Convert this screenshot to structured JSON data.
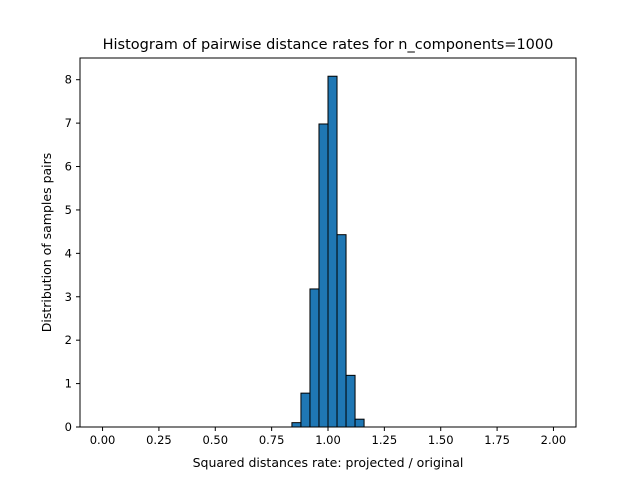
{
  "chart_data": {
    "type": "bar",
    "title": "Histogram of pairwise distance rates for n_components=1000",
    "xlabel": "Squared distances rate: projected / original",
    "ylabel": "Distribution of samples pairs",
    "xlim": [
      -0.1,
      2.1
    ],
    "ylim": [
      0,
      8.5
    ],
    "x_ticks": [
      "0.00",
      "0.25",
      "0.50",
      "0.75",
      "1.00",
      "1.25",
      "1.50",
      "1.75",
      "2.00"
    ],
    "y_ticks": [
      "0",
      "1",
      "2",
      "3",
      "4",
      "5",
      "6",
      "7",
      "8"
    ],
    "bin_width": 0.04,
    "bins": [
      {
        "x0": 0.84,
        "x1": 0.88,
        "value": 0.1
      },
      {
        "x0": 0.88,
        "x1": 0.92,
        "value": 0.78
      },
      {
        "x0": 0.92,
        "x1": 0.96,
        "value": 3.18
      },
      {
        "x0": 0.96,
        "x1": 1.0,
        "value": 6.98
      },
      {
        "x0": 1.0,
        "x1": 1.04,
        "value": 8.08
      },
      {
        "x0": 1.04,
        "x1": 1.08,
        "value": 4.43
      },
      {
        "x0": 1.08,
        "x1": 1.12,
        "value": 1.19
      },
      {
        "x0": 1.12,
        "x1": 1.16,
        "value": 0.18
      }
    ],
    "grid": false,
    "colors": {
      "bar_fill": "#1f77b4",
      "bar_edge": "#000000"
    }
  }
}
